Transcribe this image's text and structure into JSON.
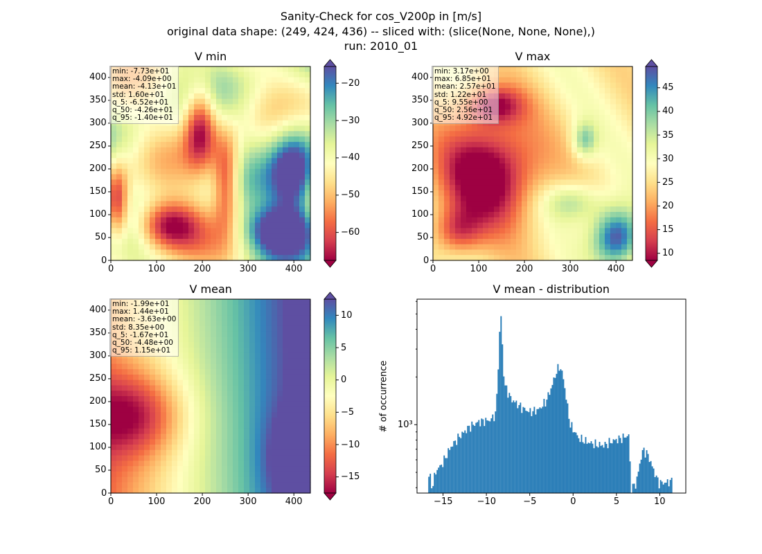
{
  "figure": {
    "title_lines": [
      "Sanity-Check for cos_V200p in [m/s]",
      "original data shape: (249, 424, 436) -- sliced with: (slice(None, None, None),)",
      "run: 2010_01"
    ]
  },
  "chart_data": [
    {
      "type": "heatmap",
      "title": "V min",
      "colormap": "Spectral",
      "xlim": [
        0,
        436
      ],
      "ylim": [
        0,
        424
      ],
      "xticks": [
        0,
        100,
        200,
        300,
        400
      ],
      "yticks": [
        0,
        50,
        100,
        150,
        200,
        250,
        300,
        350,
        400
      ],
      "colorbar": {
        "range": [
          -67.5,
          -15.5
        ],
        "ticks": [
          -60,
          -50,
          -40,
          -30,
          -20
        ],
        "extend": "both"
      },
      "stats_box": [
        "min: -7.73e+01",
        "max: -4.09e+00",
        "mean: -4.13e+01",
        "std: 1.60e+01",
        "q_5: -6.52e+01",
        "q_50: -4.26e+01",
        "q_95: -1.40e+01"
      ]
    },
    {
      "type": "heatmap",
      "title": "V max",
      "colormap": "Spectral",
      "xlim": [
        0,
        436
      ],
      "ylim": [
        0,
        424
      ],
      "xticks": [
        0,
        100,
        200,
        300,
        400
      ],
      "yticks": [
        0,
        50,
        100,
        150,
        200,
        250,
        300,
        350,
        400
      ],
      "colorbar": {
        "range": [
          8.5,
          49.5
        ],
        "ticks": [
          10,
          15,
          20,
          25,
          30,
          35,
          40,
          45
        ],
        "extend": "both"
      },
      "stats_box": [
        "min: 3.17e+00",
        "max: 6.85e+01",
        "mean: 2.57e+01",
        "std: 1.22e+01",
        "q_5: 9.55e+00",
        "q_50: 2.56e+01",
        "q_95: 4.92e+01"
      ]
    },
    {
      "type": "heatmap",
      "title": "V mean",
      "colormap": "Spectral",
      "xlim": [
        0,
        436
      ],
      "ylim": [
        0,
        424
      ],
      "xticks": [
        0,
        100,
        200,
        300,
        400
      ],
      "yticks": [
        0,
        50,
        100,
        150,
        200,
        250,
        300,
        350,
        400
      ],
      "colorbar": {
        "range": [
          -17.5,
          12.5
        ],
        "ticks": [
          -15,
          -10,
          -5,
          0,
          5,
          10
        ],
        "extend": "both"
      },
      "stats_box": [
        "min: -1.99e+01",
        "max: 1.44e+01",
        "mean: -3.63e+00",
        "std: 8.35e+00",
        "q_5: -1.67e+01",
        "q_50: -4.48e+00",
        "q_95: 1.15e+01"
      ]
    },
    {
      "type": "bar",
      "title": "V mean - distribution",
      "ylabel": "# of occurrence",
      "yscale": "log",
      "xlim": [
        -18,
        13
      ],
      "ylim": [
        370,
        6200
      ],
      "xticks": [
        -15,
        -10,
        -5,
        0,
        5,
        10
      ],
      "yticks": [
        1000
      ],
      "yticklabels": [
        "10³"
      ],
      "bar_color": "#1f77b4",
      "bin_width": 0.16,
      "bins": [
        [
          -16.6,
          490
        ],
        [
          -16.4,
          400
        ],
        [
          -15.8,
          520
        ],
        [
          -15.2,
          560
        ],
        [
          -14.2,
          720
        ],
        [
          -13.2,
          840
        ],
        [
          -12.0,
          970
        ],
        [
          -11.0,
          1040
        ],
        [
          -9.6,
          1070
        ],
        [
          -9.0,
          1170
        ],
        [
          -8.8,
          1700
        ],
        [
          -8.6,
          3300
        ],
        [
          -8.4,
          5100
        ],
        [
          -8.2,
          3000
        ],
        [
          -8.0,
          1800
        ],
        [
          -7.2,
          1450
        ],
        [
          -6.0,
          1280
        ],
        [
          -5.0,
          1200
        ],
        [
          -4.0,
          1250
        ],
        [
          -3.2,
          1400
        ],
        [
          -2.6,
          1700
        ],
        [
          -2.0,
          2150
        ],
        [
          -1.6,
          2350
        ],
        [
          -1.2,
          2000
        ],
        [
          -0.8,
          1400
        ],
        [
          -0.4,
          1000
        ],
        [
          0.6,
          820
        ],
        [
          1.5,
          780
        ],
        [
          2.5,
          750
        ],
        [
          3.5,
          740
        ],
        [
          4.5,
          790
        ],
        [
          5.5,
          820
        ],
        [
          6.4,
          860
        ],
        [
          6.6,
          380
        ],
        [
          7.0,
          420
        ],
        [
          7.2,
          420
        ],
        [
          7.6,
          560
        ],
        [
          8.0,
          700
        ],
        [
          8.6,
          640
        ],
        [
          9.2,
          520
        ],
        [
          9.8,
          430
        ],
        [
          10.6,
          430
        ],
        [
          11.2,
          440
        ]
      ]
    }
  ]
}
